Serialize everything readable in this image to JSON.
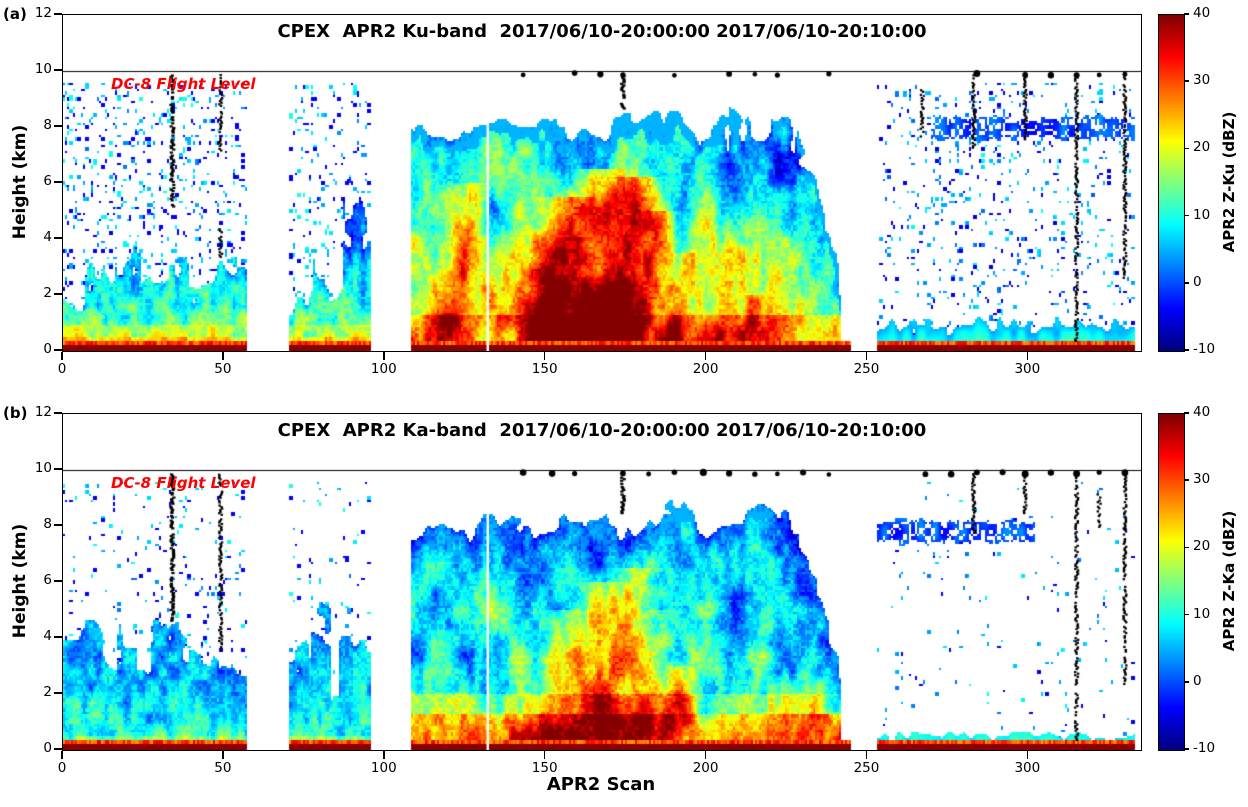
{
  "figure": {
    "xlabel": "APR2 Scan",
    "background": "#ffffff"
  },
  "chart_data": [
    {
      "type": "heatmap",
      "panel_tag": "(a)",
      "title": "CPEX  APR2 Ku-band  2017/06/10-20:00:00 2017/06/10-20:10:00",
      "xlabel": "APR2 Scan",
      "ylabel": "Height (km)",
      "xlim": [
        0,
        335
      ],
      "ylim": [
        0,
        12
      ],
      "x_ticks": [
        0,
        50,
        100,
        150,
        200,
        250,
        300
      ],
      "y_ticks": [
        0,
        2,
        4,
        6,
        8,
        10,
        12
      ],
      "colormap": "jet",
      "colorbar": {
        "label": "APR2 Z-Ku (dBZ)",
        "ticks": [
          40,
          30,
          20,
          10,
          0,
          -10
        ],
        "range": [
          -10,
          40
        ]
      },
      "flight_level_km": 10,
      "flight_annotation": "DC-8 Flight Level",
      "flight_annotation_color": "#ff0000",
      "surface_top_km": 0.35,
      "surface_return_dbz": 40,
      "data_gaps_scan": [
        [
          57,
          70
        ],
        [
          96,
          108
        ],
        [
          245,
          253
        ]
      ],
      "data_end_scan": 333,
      "nadir_white_line_scan": 132,
      "regions": [
        {
          "x0": 0,
          "x1": 57,
          "kind": "shallow",
          "low_top": 2.3,
          "speckle_density": 0.07,
          "cells": [
            {
              "x": 10,
              "top": 2.6,
              "w": 3
            },
            {
              "x": 20,
              "top": 3.2,
              "w": 4
            },
            {
              "x": 36,
              "top": 3.0,
              "w": 3
            }
          ]
        },
        {
          "x0": 70,
          "x1": 96,
          "kind": "shallow",
          "low_top": 1.7,
          "speckle_density": 0.05,
          "cells": [
            {
              "x": 80,
              "top": 3.0,
              "w": 2.5
            },
            {
              "x": 90,
              "top": 5.0,
              "w": 3
            },
            {
              "x": 95,
              "top": 4.2,
              "w": 2
            }
          ]
        },
        {
          "x0": 108,
          "x1": 242,
          "kind": "deep",
          "top": 8.1
        },
        {
          "x0": 253,
          "x1": 333,
          "kind": "clear",
          "low_band_top": 0.9,
          "speckle_density": 0.05
        }
      ],
      "cores": [
        {
          "x": 120,
          "w": 4,
          "top": 6.0,
          "dbz": 14
        },
        {
          "x": 149,
          "w": 5,
          "top": 5.5,
          "dbz": 20
        },
        {
          "x": 160,
          "w": 6,
          "top": 6.5,
          "dbz": 22
        },
        {
          "x": 171,
          "w": 5,
          "top": 6.2,
          "dbz": 22
        },
        {
          "x": 180,
          "w": 4,
          "top": 5.0,
          "dbz": 16
        },
        {
          "x": 190,
          "w": 3,
          "top": 3.5,
          "dbz": 14
        },
        {
          "x": 205,
          "w": 3,
          "top": 2.5,
          "dbz": 12
        },
        {
          "x": 213,
          "w": 3,
          "top": 2.0,
          "dbz": 10
        }
      ],
      "blue_layer": {
        "x0": 270,
        "x1": 333,
        "h": 7.95
      },
      "black_columns": [
        {
          "x": 34,
          "y0": 9.9,
          "y1": 5.2,
          "w": 3.2
        },
        {
          "x": 49,
          "y0": 9.9,
          "y1": 7.2
        },
        {
          "x": 49,
          "y0": 4.4,
          "y1": 3.4
        },
        {
          "x": 174,
          "y0": 9.9,
          "y1": 8.7,
          "w": 3.2
        },
        {
          "x": 267,
          "y0": 9.4,
          "y1": 7.7
        },
        {
          "x": 283,
          "y0": 9.9,
          "y1": 7.3
        },
        {
          "x": 299,
          "y0": 9.9,
          "y1": 7.6
        },
        {
          "x": 315,
          "y0": 9.9,
          "y1": 0.4
        },
        {
          "x": 330,
          "y0": 9.9,
          "y1": 2.6
        }
      ],
      "flight_dots_scan": [
        143,
        159,
        167,
        174,
        190,
        207,
        215,
        222,
        238,
        284,
        299,
        307,
        315,
        322,
        330
      ]
    },
    {
      "type": "heatmap",
      "panel_tag": "(b)",
      "title": "CPEX  APR2 Ka-band  2017/06/10-20:00:00 2017/06/10-20:10:00",
      "xlabel": "APR2 Scan",
      "ylabel": "Height (km)",
      "xlim": [
        0,
        335
      ],
      "ylim": [
        0,
        12
      ],
      "x_ticks": [
        0,
        50,
        100,
        150,
        200,
        250,
        300
      ],
      "y_ticks": [
        0,
        2,
        4,
        6,
        8,
        10,
        12
      ],
      "colormap": "jet",
      "colorbar": {
        "label": "APR2 Z-Ka (dBZ)",
        "ticks": [
          40,
          30,
          20,
          10,
          0,
          -10
        ],
        "range": [
          -10,
          40
        ]
      },
      "flight_level_km": 10,
      "flight_annotation": "DC-8 Flight Level",
      "flight_annotation_color": "#ff0000",
      "surface_top_km": 0.35,
      "surface_return_dbz": 40,
      "data_gaps_scan": [
        [
          57,
          70
        ],
        [
          96,
          108
        ],
        [
          245,
          253
        ]
      ],
      "data_end_scan": 333,
      "nadir_white_line_scan": 132,
      "regions": [
        {
          "x0": 0,
          "x1": 57,
          "kind": "shallow",
          "cold": true,
          "low_top": 3.2,
          "speckle_density": 0.03,
          "cells": [
            {
              "x": 8,
              "top": 3.4,
              "w": 3
            },
            {
              "x": 20,
              "top": 3.6,
              "w": 3
            },
            {
              "x": 30,
              "top": 4.2,
              "w": 2.5
            },
            {
              "x": 42,
              "top": 3.2,
              "w": 3
            },
            {
              "x": 52,
              "top": 2.4,
              "w": 2
            }
          ]
        },
        {
          "x0": 70,
          "x1": 96,
          "kind": "shallow",
          "cold": true,
          "low_top": 3.0,
          "speckle_density": 0.025,
          "cells": [
            {
              "x": 72,
              "top": 3.4,
              "w": 2.5
            },
            {
              "x": 80,
              "top": 4.4,
              "w": 3
            },
            {
              "x": 88,
              "top": 4.0,
              "w": 2.5
            },
            {
              "x": 95,
              "top": 3.0,
              "w": 2
            }
          ]
        },
        {
          "x0": 108,
          "x1": 242,
          "kind": "deep",
          "top": 8.2,
          "atten": 5
        },
        {
          "x0": 253,
          "x1": 333,
          "kind": "clear",
          "low_band_top": 0.5,
          "speckle_density": 0.012
        }
      ],
      "cores": [
        {
          "x": 150,
          "w": 4,
          "top": 5.0,
          "dbz": 14
        },
        {
          "x": 160,
          "w": 5,
          "top": 6.0,
          "dbz": 16
        },
        {
          "x": 170,
          "w": 5,
          "top": 6.5,
          "dbz": 16
        },
        {
          "x": 179,
          "w": 4,
          "top": 5.0,
          "dbz": 12
        },
        {
          "x": 190,
          "w": 3,
          "top": 3.0,
          "dbz": 10
        }
      ],
      "blue_layer": {
        "x0": 253,
        "x1": 302,
        "h": 7.8
      },
      "black_columns": [
        {
          "x": 34,
          "y0": 9.9,
          "y1": 4.6,
          "w": 3.2
        },
        {
          "x": 49,
          "y0": 9.9,
          "y1": 3.6
        },
        {
          "x": 174,
          "y0": 9.9,
          "y1": 8.5,
          "w": 3.2
        },
        {
          "x": 283,
          "y0": 9.9,
          "y1": 7.8
        },
        {
          "x": 299,
          "y0": 9.9,
          "y1": 8.5
        },
        {
          "x": 322,
          "y0": 9.2,
          "y1": 7.9
        },
        {
          "x": 315,
          "y0": 9.9,
          "y1": 0.4
        },
        {
          "x": 330,
          "y0": 9.9,
          "y1": 2.4
        }
      ],
      "flight_dots_scan": [
        143,
        152,
        159,
        174,
        182,
        190,
        199,
        207,
        215,
        222,
        230,
        238,
        268,
        276,
        284,
        292,
        299,
        307,
        315,
        322,
        330
      ]
    }
  ]
}
